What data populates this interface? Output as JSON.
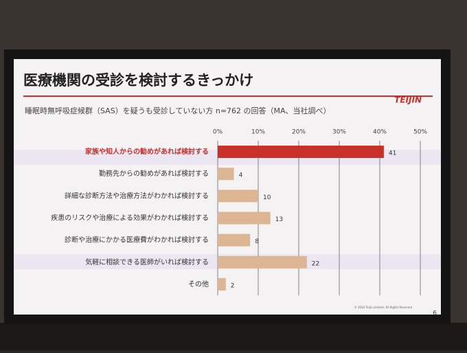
{
  "chart_data": {
    "type": "hbar",
    "title": "医療機関の受診を検討するきっかけ",
    "subtitle": "睡眠時無呼吸症候群（SAS）を疑うも受診していない方 n=762 の回答（MA、当社調べ）",
    "logo": "TEIJIN",
    "categories": [
      "家族や知人からの勧めがあれば検討する",
      "勤務先からの勧めがあれば検討する",
      "詳細な診断方法や治療方法がわかれば検討する",
      "疾患のリスクや治療による効果がわかれば検討する",
      "診断や治療にかかる医療費がわかれば検討する",
      "気軽に相談できる医師がいれば検討する",
      "その他"
    ],
    "values": [
      41,
      4,
      10,
      13,
      8,
      22,
      2
    ],
    "colors": [
      "#c8302a",
      "#dcb592",
      "#dcb592",
      "#dcb592",
      "#dcb592",
      "#dcb592",
      "#dcb592"
    ],
    "label_colors": [
      "#c8302a",
      "#333333",
      "#333333",
      "#333333",
      "#333333",
      "#333333",
      "#333333"
    ],
    "xlim": [
      0,
      50
    ],
    "xticks": [
      {
        "value": 0,
        "label": "0%"
      },
      {
        "value": 10,
        "label": "10%"
      },
      {
        "value": 20,
        "label": "20%"
      },
      {
        "value": 30,
        "label": "30%"
      },
      {
        "value": 40,
        "label": "40%"
      },
      {
        "value": 50,
        "label": "50%"
      }
    ],
    "grid": true,
    "footer": "© 2020 Teijin Limited. All Rights Reserved",
    "page_number": "6"
  }
}
